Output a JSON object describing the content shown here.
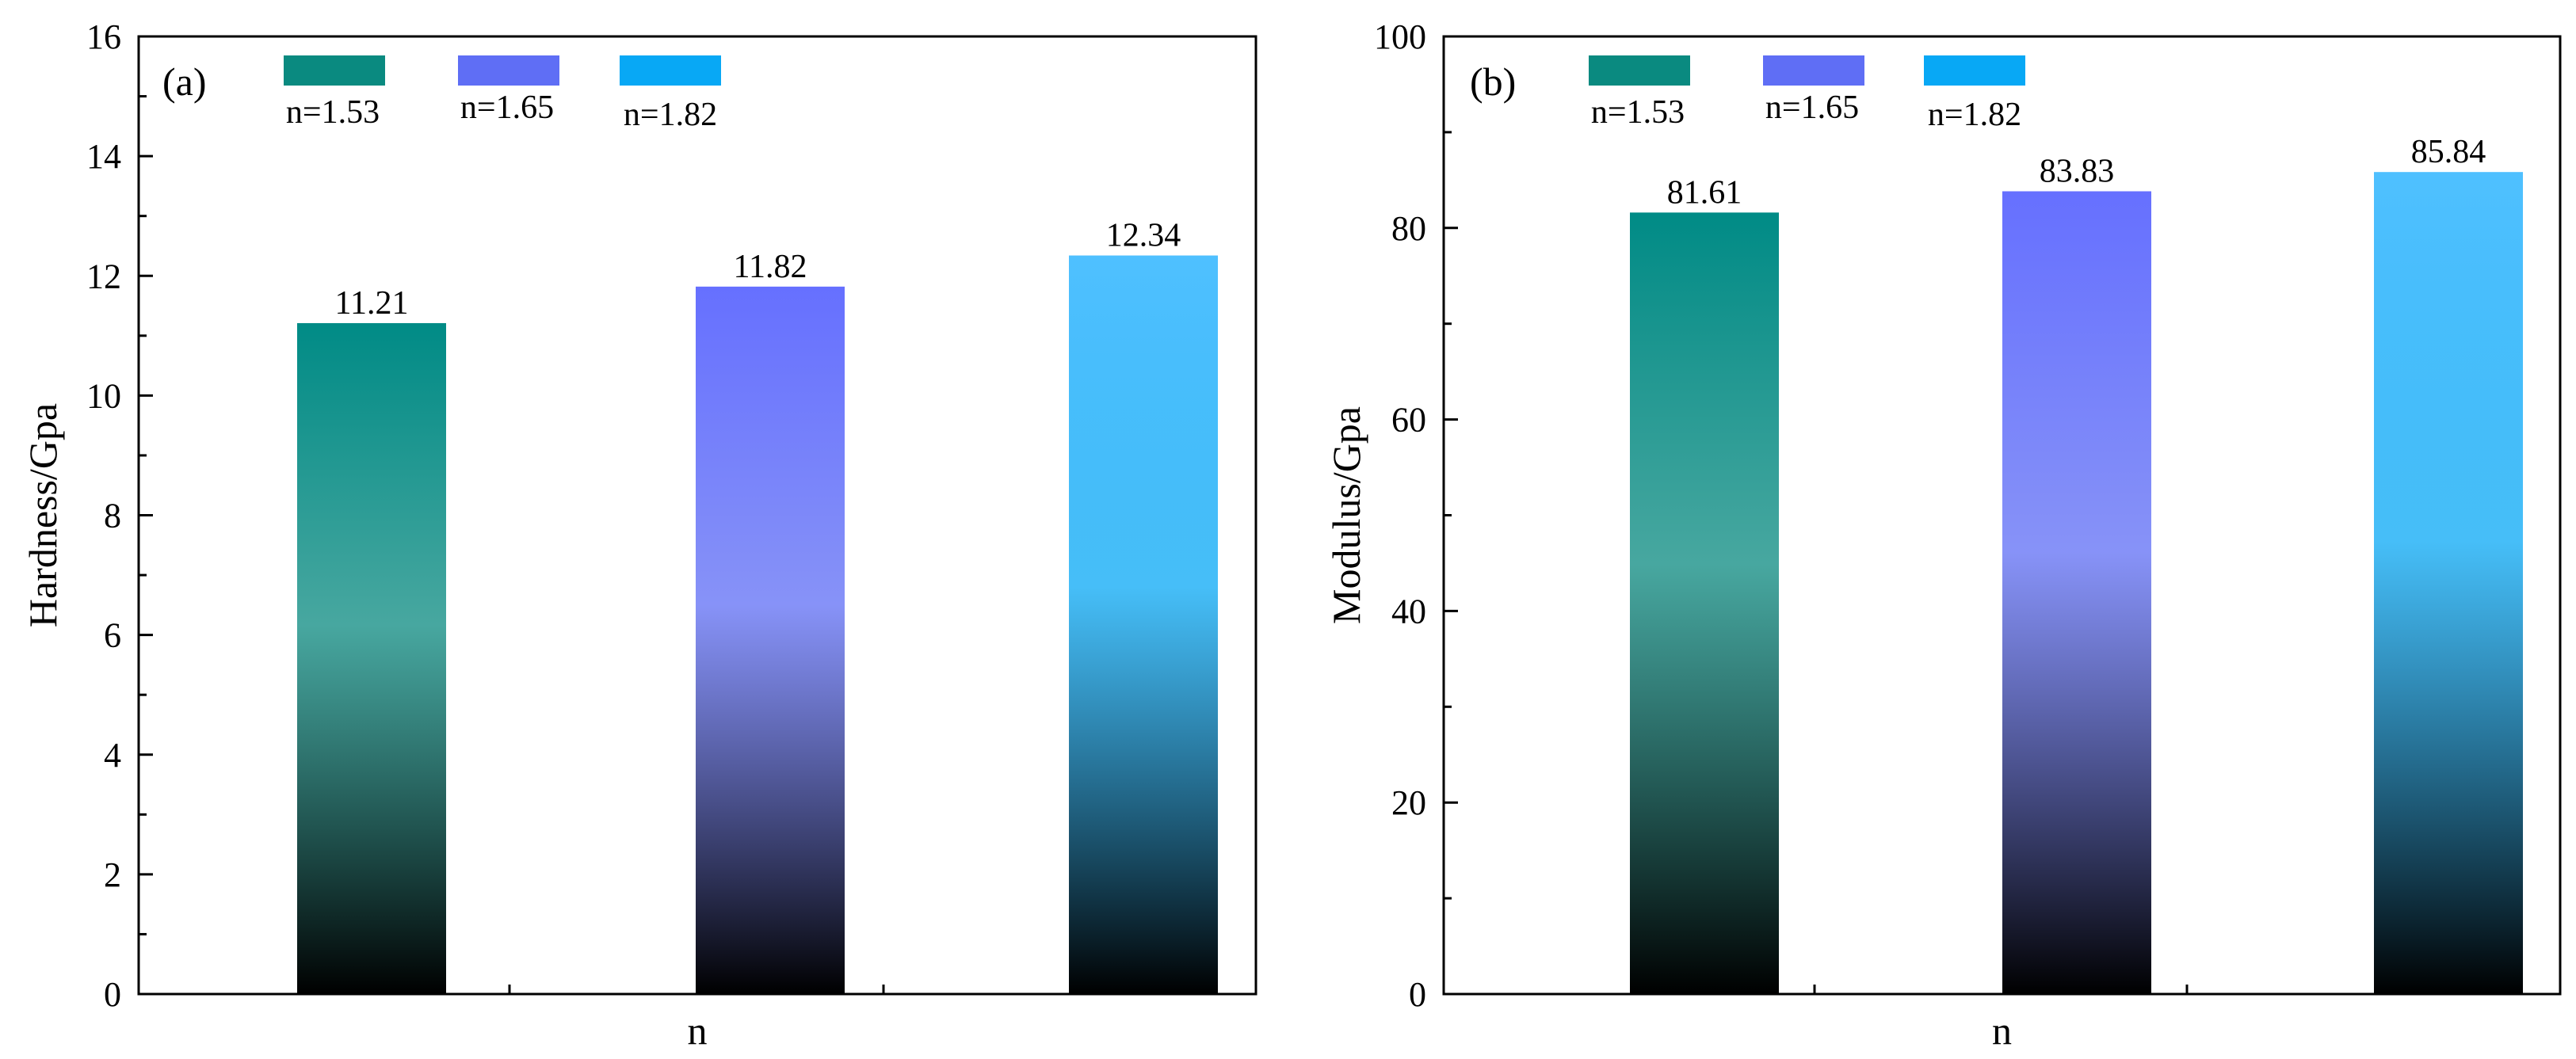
{
  "chart_data": [
    {
      "type": "bar",
      "panel": "(a)",
      "title": "",
      "xlabel": "n",
      "ylabel": "Hardness/Gpa",
      "ylim": [
        0,
        16
      ],
      "yticks": [
        "0",
        "2",
        "4",
        "6",
        "8",
        "10",
        "12",
        "14",
        "16"
      ],
      "series": [
        {
          "name": "n=1.53",
          "value": 11.21,
          "label": "11.21",
          "color": "#0a8a80",
          "top_color": "#008b86"
        },
        {
          "name": "n=1.65",
          "value": 11.82,
          "label": "11.82",
          "color": "#5f6ef5",
          "top_color": "#6670ff"
        },
        {
          "name": "n=1.82",
          "value": 12.34,
          "label": "12.34",
          "color": "#08a8f5",
          "top_color": "#4fc0ff"
        }
      ],
      "legend": "top-left, horizontal",
      "grid": false
    },
    {
      "type": "bar",
      "panel": "(b)",
      "title": "",
      "xlabel": "n",
      "ylabel": "Modulus/Gpa",
      "ylim": [
        0,
        100
      ],
      "yticks": [
        "0",
        "20",
        "40",
        "60",
        "80",
        "100"
      ],
      "series": [
        {
          "name": "n=1.53",
          "value": 81.61,
          "label": "81.61",
          "color": "#0a8a80",
          "top_color": "#008b86"
        },
        {
          "name": "n=1.65",
          "value": 83.83,
          "label": "83.83",
          "color": "#5f6ef5",
          "top_color": "#6670ff"
        },
        {
          "name": "n=1.82",
          "value": 85.84,
          "label": "85.84",
          "color": "#08a8f5",
          "top_color": "#4fc0ff"
        }
      ],
      "legend": "top-left, horizontal",
      "grid": false
    }
  ]
}
